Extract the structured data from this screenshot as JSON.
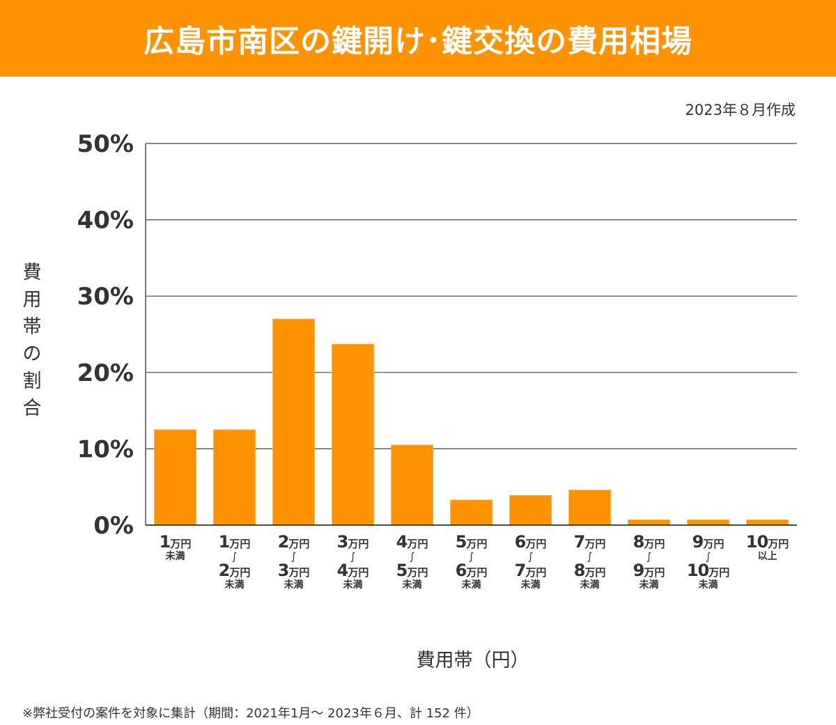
{
  "header": {
    "title": "広島市南区の鍵開け･鍵交換の費用相場",
    "banner_color": "#FF9200"
  },
  "created_note": "2023年８月作成",
  "footnote": "※弊社受付の案件を対象に集計（期間：2021年1月～ 2023年６月、計 152 件）",
  "chart_data": {
    "type": "bar",
    "title": "広島市南区の鍵開け･鍵交換の費用相場",
    "xlabel": "費用帯（円）",
    "ylabel": "費用帯の割合",
    "ylim": [
      0,
      50
    ],
    "yticks": [
      0,
      10,
      20,
      30,
      40,
      50
    ],
    "ytick_labels": [
      "0%",
      "10%",
      "20%",
      "30%",
      "40%",
      "50%"
    ],
    "grid": true,
    "bar_color": "#FF9200",
    "total_count": 152,
    "categories": [
      "1万円未満",
      "1万円～2万円未満",
      "2万円～3万円未満",
      "3万円～4万円未満",
      "4万円～5万円未満",
      "5万円～6万円未満",
      "6万円～7万円未満",
      "7万円～8万円未満",
      "8万円～9万円未満",
      "9万円～10万円未満",
      "10万円以上"
    ],
    "category_labels": [
      {
        "from": "1",
        "to": null,
        "suffix": "未満"
      },
      {
        "from": "1",
        "to": "2",
        "suffix": "未満"
      },
      {
        "from": "2",
        "to": "3",
        "suffix": "未満"
      },
      {
        "from": "3",
        "to": "4",
        "suffix": "未満"
      },
      {
        "from": "4",
        "to": "5",
        "suffix": "未満"
      },
      {
        "from": "5",
        "to": "6",
        "suffix": "未満"
      },
      {
        "from": "6",
        "to": "7",
        "suffix": "未満"
      },
      {
        "from": "7",
        "to": "8",
        "suffix": "未満"
      },
      {
        "from": "8",
        "to": "9",
        "suffix": "未満"
      },
      {
        "from": "9",
        "to": "10",
        "suffix": "未満"
      },
      {
        "from": "10",
        "to": null,
        "suffix": "以上"
      }
    ],
    "unit": "万円",
    "tilde": "～",
    "values": [
      12.5,
      12.5,
      27.0,
      23.7,
      10.5,
      3.3,
      3.9,
      4.6,
      0.7,
      0.7,
      0.7
    ]
  }
}
